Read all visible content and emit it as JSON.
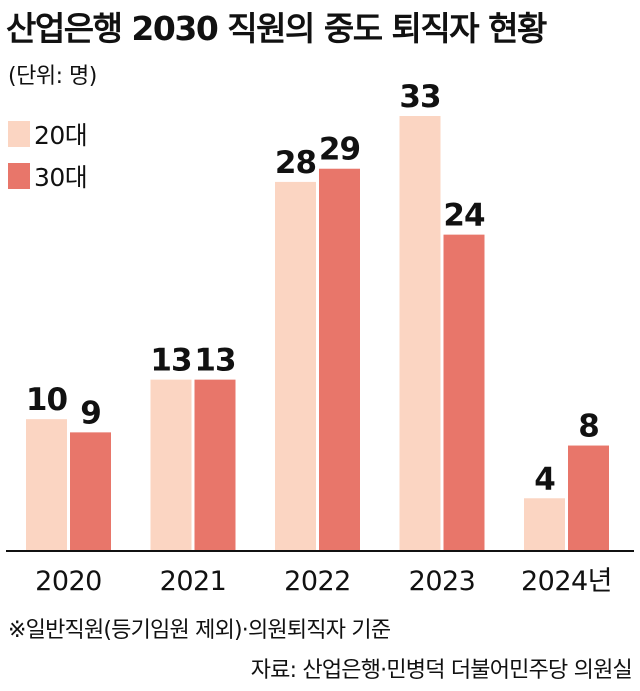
{
  "title": "산업은행 2030 직원의 중도 퇴직자 현황",
  "unit_note": "(단위: 명)",
  "note": "※일반직원(등기임원 제외)·의원퇴직자 기준",
  "source": "자료: 산업은행·민병덕 더불어민주당 의원실",
  "colors": {
    "series_20s": "#fbd5c2",
    "series_30s": "#e8766a",
    "axis": "#111111"
  },
  "chart_data": {
    "type": "bar",
    "categories": [
      "2020",
      "2021",
      "2022",
      "2023",
      "2024년"
    ],
    "series": [
      {
        "name": "20대",
        "values": [
          10,
          13,
          28,
          33,
          4
        ]
      },
      {
        "name": "30대",
        "values": [
          9,
          13,
          29,
          24,
          8
        ]
      }
    ],
    "ylim": [
      0,
      33
    ],
    "legend": "top-left",
    "grid": false,
    "xlabel": "",
    "ylabel": ""
  }
}
